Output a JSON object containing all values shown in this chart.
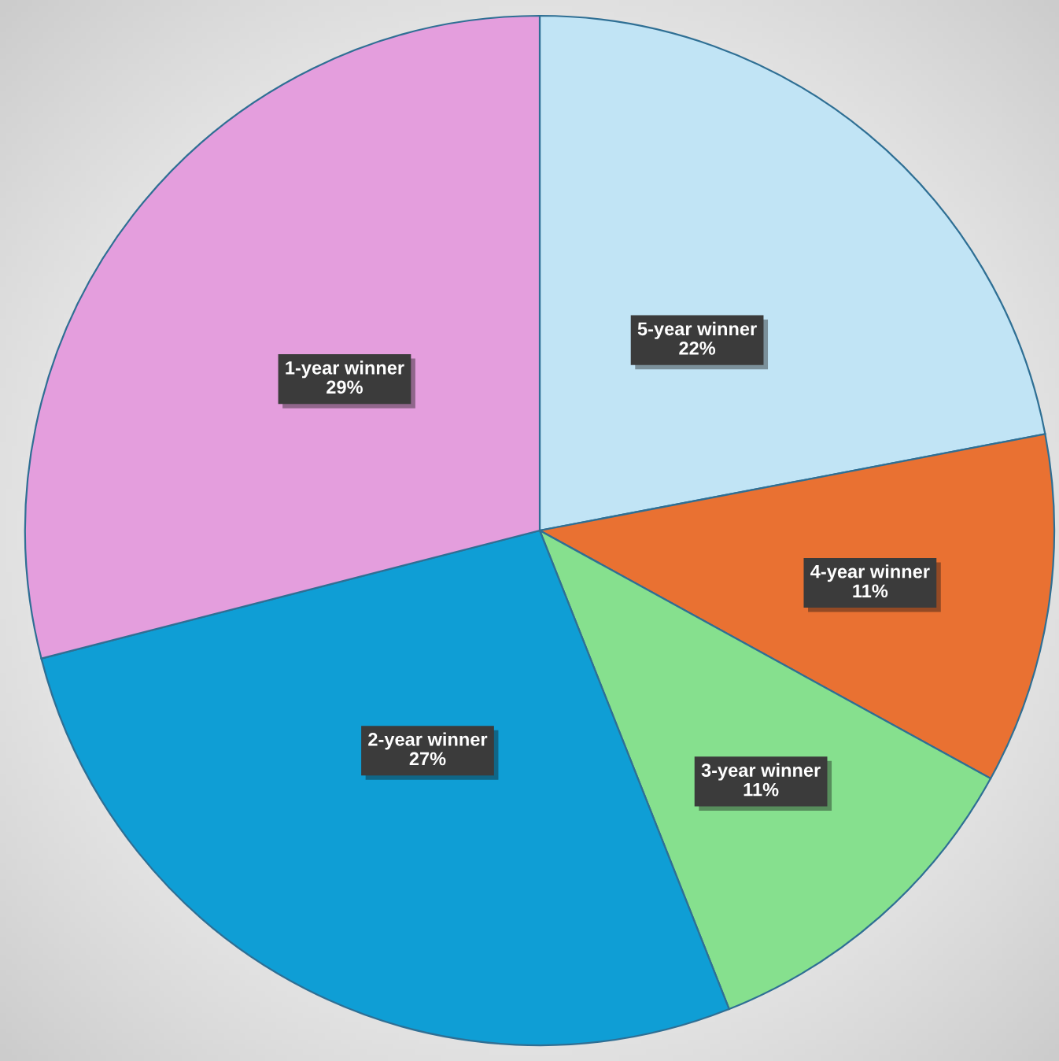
{
  "chart_data": {
    "type": "pie",
    "categories": [
      "5-year winner",
      "4-year winner",
      "3-year winner",
      "2-year winner",
      "1-year winner"
    ],
    "values": [
      22,
      11,
      11,
      27,
      29
    ],
    "value_labels": [
      "22%",
      "11%",
      "11%",
      "27%",
      "29%"
    ],
    "colors": [
      "#c1e4f5",
      "#e97132",
      "#86e08e",
      "#0f9ed5",
      "#e49edd"
    ],
    "legend": false
  }
}
